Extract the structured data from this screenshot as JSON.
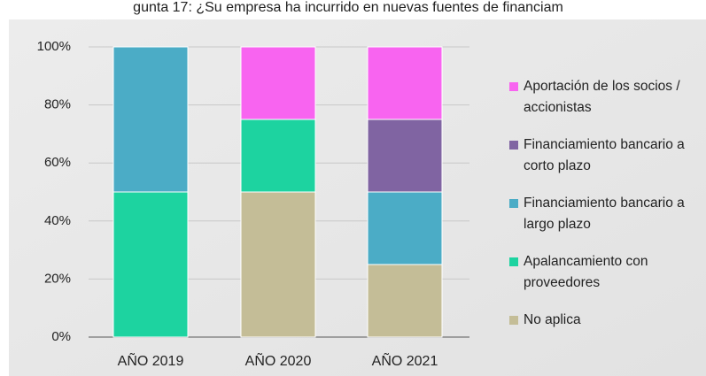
{
  "chart_data": {
    "type": "stacked_bar",
    "title": "gunta 17: ¿Su empresa ha incurrido en nuevas fuentes de financiam",
    "categories": [
      "AÑO 2019",
      "AÑO 2020",
      "AÑO 2021"
    ],
    "series": [
      {
        "name": "No aplica",
        "color": "#c4bd97",
        "values": [
          0,
          50,
          25
        ]
      },
      {
        "name": "Apalancamiento con proveedores",
        "color": "#1dd3a0",
        "values": [
          50,
          25,
          0
        ]
      },
      {
        "name": "Financiamiento bancario a largo plazo",
        "color": "#4bacc6",
        "values": [
          50,
          0,
          25
        ]
      },
      {
        "name": "Financiamiento bancario a corto plazo",
        "color": "#8064a2",
        "values": [
          0,
          0,
          25
        ]
      },
      {
        "name": "Aportación de los socios / accionistas",
        "color": "#f864f0",
        "values": [
          0,
          25,
          25
        ]
      }
    ],
    "ylim": [
      0,
      100
    ],
    "yticks": [
      {
        "value": 0,
        "label": "0%"
      },
      {
        "value": 20,
        "label": "20%"
      },
      {
        "value": 40,
        "label": "40%"
      },
      {
        "value": 60,
        "label": "60%"
      },
      {
        "value": 80,
        "label": "80%"
      },
      {
        "value": 100,
        "label": "100%"
      }
    ],
    "grid": true
  }
}
